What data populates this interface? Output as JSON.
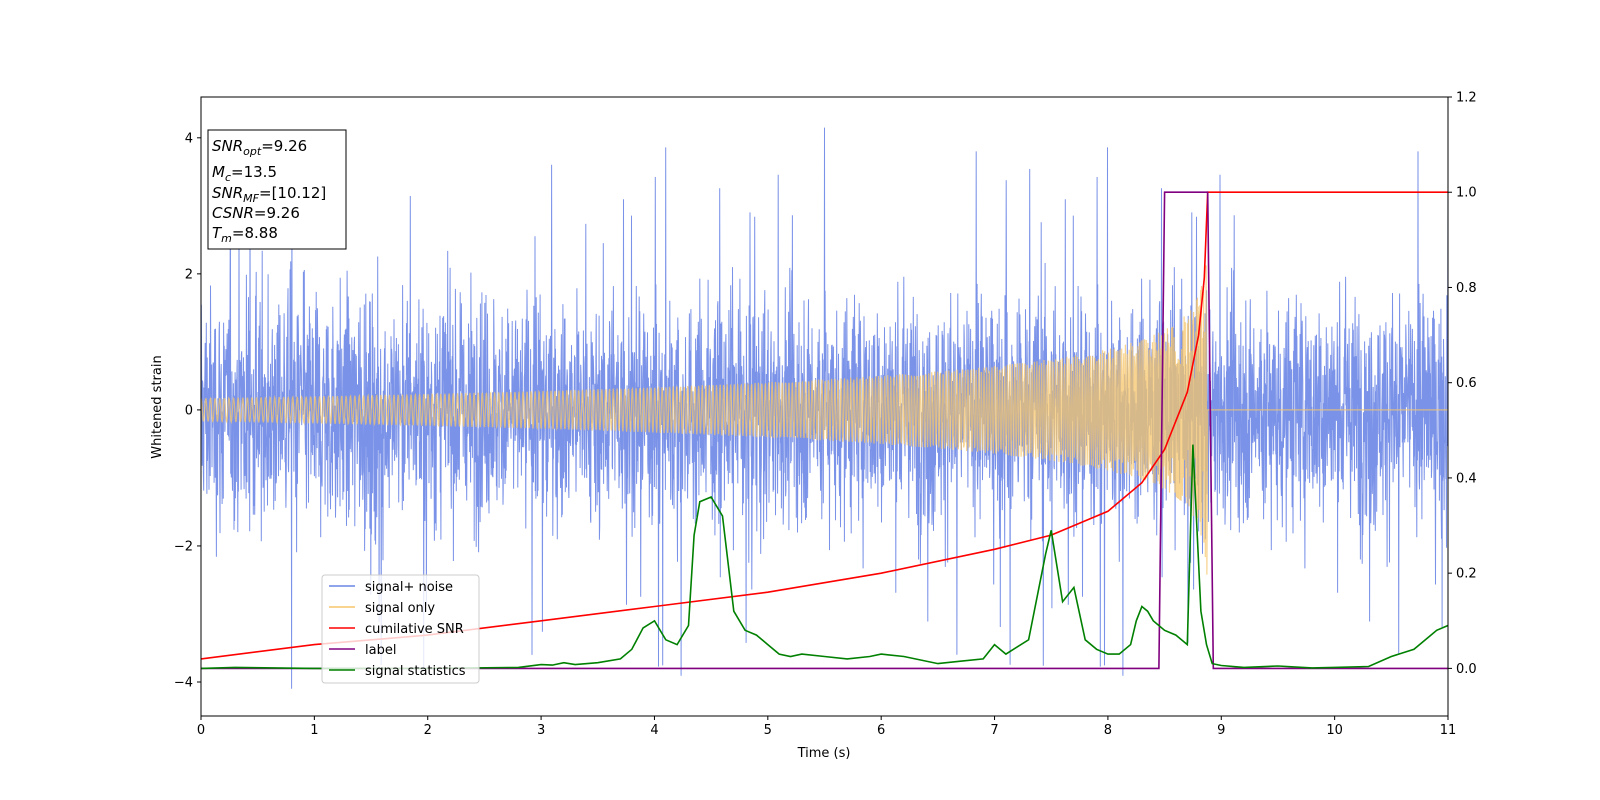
{
  "chart_data": {
    "type": "line",
    "xlabel": "Time (s)",
    "ylabel": "Whitened strain",
    "xlim": [
      0,
      11
    ],
    "ylim_left": [
      -4.5,
      4.6
    ],
    "ylim_right": [
      -0.1,
      1.2
    ],
    "xticks": [
      "0",
      "1",
      "2",
      "3",
      "4",
      "5",
      "6",
      "7",
      "8",
      "9",
      "10",
      "11"
    ],
    "yticks_left": [
      "4",
      "2",
      "0",
      "−2",
      "−4"
    ],
    "yticks_right": [
      "1.2",
      "1.0",
      "0.8",
      "0.6",
      "0.4",
      "0.2",
      "0.0"
    ],
    "grid": false,
    "legend_position": "lower-left",
    "annotation": {
      "snr_opt_label": "SNR",
      "snr_opt_sub": "opt",
      "snr_opt_value": "=9.26",
      "mc_label": "M",
      "mc_sub": "c",
      "mc_value": "=13.5",
      "snr_mf_label": "SNR",
      "snr_mf_sub": "MF",
      "snr_mf_value": "=[10.12]",
      "csnr_label": "CSNR",
      "csnr_value": "=9.26",
      "tm_label": "T",
      "tm_sub": "m",
      "tm_value": "=8.88"
    },
    "series": [
      {
        "name": "signal+ noise",
        "axis": "left",
        "color": "#6b86e6",
        "noise_amplitude": 1.2,
        "peak": 4.15
      },
      {
        "name": "signal only",
        "axis": "left",
        "color": "#f5c56b",
        "merger_time": 8.88,
        "peak_amplitude": 2.6
      },
      {
        "name": "cumilative SNR",
        "axis": "right",
        "color": "#ff0000",
        "x": [
          0,
          1,
          2,
          3,
          4,
          5,
          6,
          7,
          7.5,
          8,
          8.3,
          8.5,
          8.7,
          8.8,
          8.85,
          8.88,
          11
        ],
        "y": [
          0.02,
          0.05,
          0.07,
          0.1,
          0.13,
          0.16,
          0.2,
          0.25,
          0.28,
          0.33,
          0.39,
          0.46,
          0.58,
          0.7,
          0.82,
          1.0,
          1.0
        ]
      },
      {
        "name": "label",
        "axis": "right",
        "color": "#800080",
        "x": [
          0,
          8.45,
          8.5,
          8.88,
          8.93,
          11
        ],
        "y": [
          0,
          0,
          1,
          1,
          0,
          0
        ]
      },
      {
        "name": "signal statistics",
        "axis": "right",
        "color": "#008000",
        "x": [
          0,
          0.3,
          1,
          2,
          2.8,
          3.0,
          3.1,
          3.2,
          3.3,
          3.5,
          3.7,
          3.8,
          3.9,
          4.0,
          4.1,
          4.2,
          4.3,
          4.35,
          4.4,
          4.5,
          4.6,
          4.7,
          4.8,
          4.9,
          5.0,
          5.1,
          5.2,
          5.3,
          5.5,
          5.7,
          5.9,
          6.0,
          6.2,
          6.5,
          6.7,
          6.9,
          7.0,
          7.1,
          7.3,
          7.45,
          7.5,
          7.6,
          7.7,
          7.8,
          7.9,
          8.0,
          8.1,
          8.2,
          8.25,
          8.3,
          8.35,
          8.4,
          8.5,
          8.6,
          8.7,
          8.75,
          8.82,
          8.87,
          8.92,
          9.0,
          9.2,
          9.5,
          9.8,
          10.0,
          10.3,
          10.5,
          10.7,
          10.9,
          11.0
        ],
        "y": [
          0,
          0.002,
          0,
          0,
          0.002,
          0.008,
          0.007,
          0.012,
          0.008,
          0.012,
          0.02,
          0.04,
          0.085,
          0.1,
          0.06,
          0.05,
          0.09,
          0.28,
          0.35,
          0.36,
          0.32,
          0.12,
          0.08,
          0.07,
          0.05,
          0.03,
          0.025,
          0.03,
          0.025,
          0.02,
          0.025,
          0.03,
          0.025,
          0.01,
          0.015,
          0.02,
          0.05,
          0.03,
          0.06,
          0.24,
          0.29,
          0.14,
          0.17,
          0.06,
          0.04,
          0.03,
          0.03,
          0.05,
          0.1,
          0.13,
          0.12,
          0.1,
          0.08,
          0.07,
          0.05,
          0.47,
          0.12,
          0.05,
          0.01,
          0.006,
          0.002,
          0.005,
          0.001,
          0.002,
          0.004,
          0.025,
          0.04,
          0.08,
          0.09
        ]
      }
    ]
  }
}
